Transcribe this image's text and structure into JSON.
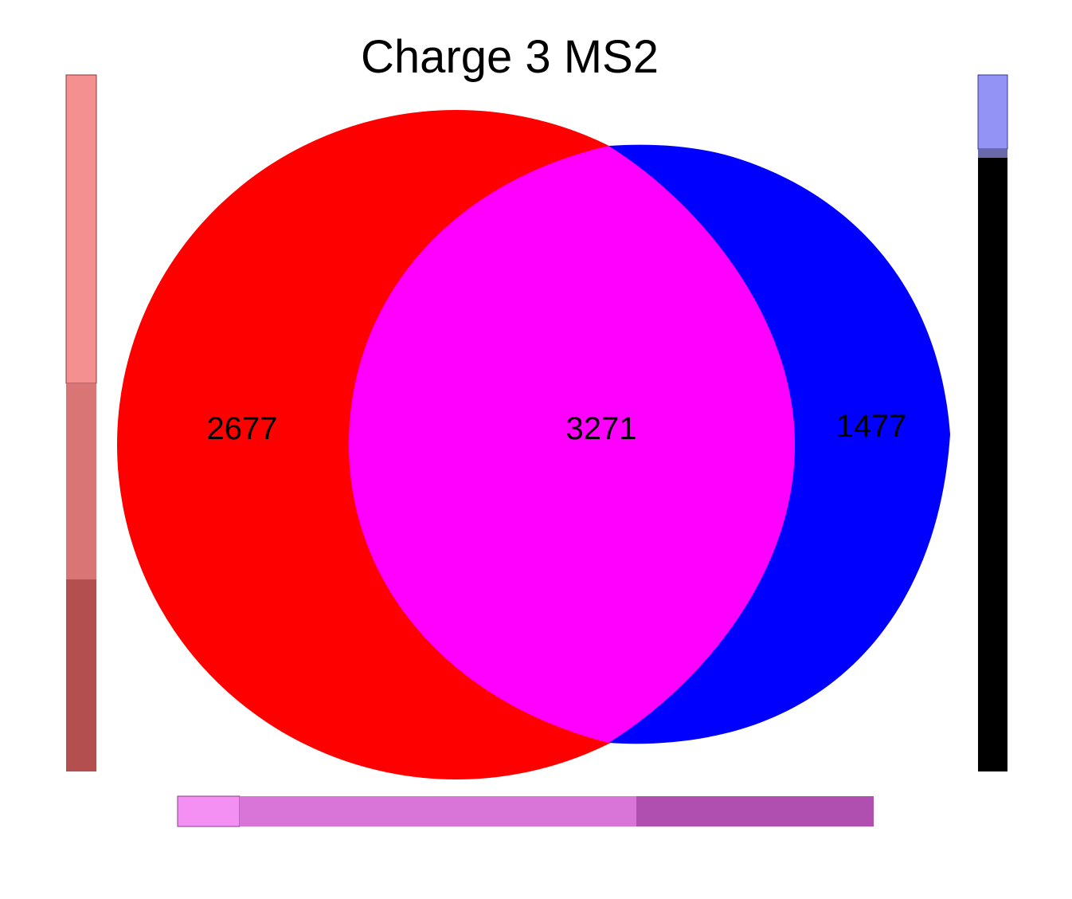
{
  "title": "Charge 3 MS2",
  "regions": {
    "left_only": "2677",
    "overlap": "3271",
    "right_only": "1477"
  },
  "colors": {
    "left_set": "#ff0000",
    "right_set": "#0000ff",
    "overlap": "#ff00ff",
    "left_bar_segments": [
      "#f59090",
      "#da7575",
      "#b34f4f"
    ],
    "right_bar_segments": [
      "#9393f5",
      "#6a6aa8",
      "#000000"
    ],
    "bottom_bar_segments": [
      "#f48ff4",
      "#d975d9",
      "#b04fb0"
    ]
  }
}
